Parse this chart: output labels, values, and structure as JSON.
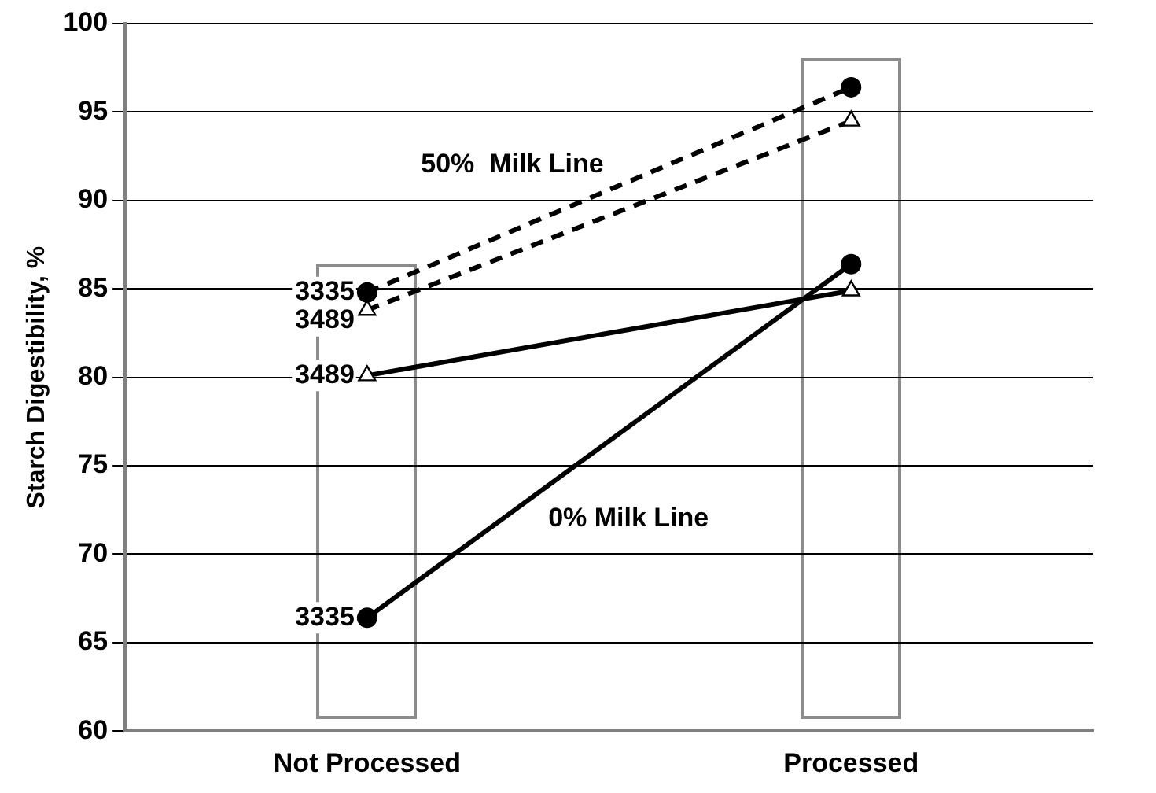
{
  "chart_data": {
    "type": "line",
    "ylabel": "Starch Digestibility, %",
    "categories": [
      "Not Processed",
      "Processed"
    ],
    "series": [
      {
        "name": "3335",
        "color": "#000000",
        "values": [
          84.8,
          96.4
        ],
        "marker": "circle",
        "line_style": "dashed"
      },
      {
        "name": "3489",
        "color": "#000000",
        "values": [
          83.8,
          94.5
        ],
        "marker": "triangle",
        "line_style": "dashed"
      },
      {
        "name": "3489",
        "color": "#000000",
        "values": [
          80.1,
          84.9
        ],
        "marker": "triangle",
        "line_style": "solid"
      },
      {
        "name": "3335",
        "color": "#000000",
        "values": [
          66.4,
          86.4
        ],
        "marker": "circle",
        "line_style": "solid"
      }
    ],
    "annotations": [
      "50%  Milk Line",
      "0% Milk Line"
    ],
    "ylim": [
      60,
      100
    ],
    "yticks": [
      60,
      65,
      70,
      75,
      80,
      85,
      90,
      95,
      100
    ],
    "grid": "y",
    "legend": false
  }
}
